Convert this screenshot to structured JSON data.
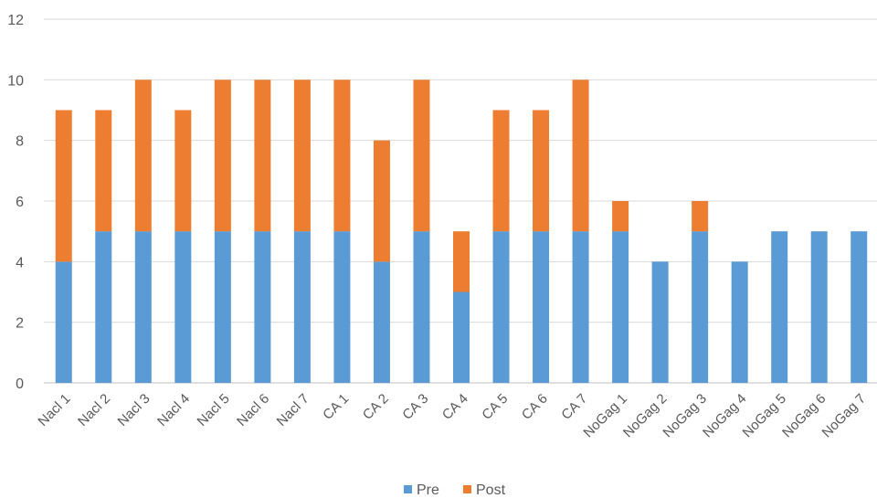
{
  "chart_data": {
    "type": "bar",
    "stacked": true,
    "title": "",
    "xlabel": "",
    "ylabel": "",
    "ylim": [
      0,
      12
    ],
    "yticks": [
      0,
      2,
      4,
      6,
      8,
      10,
      12
    ],
    "grid": true,
    "legend_position": "bottom",
    "categories": [
      "Nacl 1",
      "Nacl 2",
      "Nacl 3",
      "Nacl 4",
      "Nacl 5",
      "Nacl 6",
      "Nacl 7",
      "CA 1",
      "CA 2",
      "CA 3",
      "CA 4",
      "CA 5",
      "CA 6",
      "CA 7",
      "NoGag 1",
      "NoGag 2",
      "NoGag 3",
      "NoGag 4",
      "NoGag 5",
      "NoGag 6",
      "NoGag 7"
    ],
    "series": [
      {
        "name": "Pre",
        "color": "#5B9BD5",
        "values": [
          4,
          5,
          5,
          5,
          5,
          5,
          5,
          5,
          4,
          5,
          3,
          5,
          5,
          5,
          5,
          4,
          5,
          4,
          5,
          5,
          5
        ]
      },
      {
        "name": "Post",
        "color": "#ED7D31",
        "values": [
          5,
          4,
          5,
          4,
          5,
          5,
          5,
          5,
          4,
          5,
          2,
          4,
          4,
          5,
          1,
          0,
          1,
          0,
          0,
          0,
          0
        ]
      }
    ]
  }
}
